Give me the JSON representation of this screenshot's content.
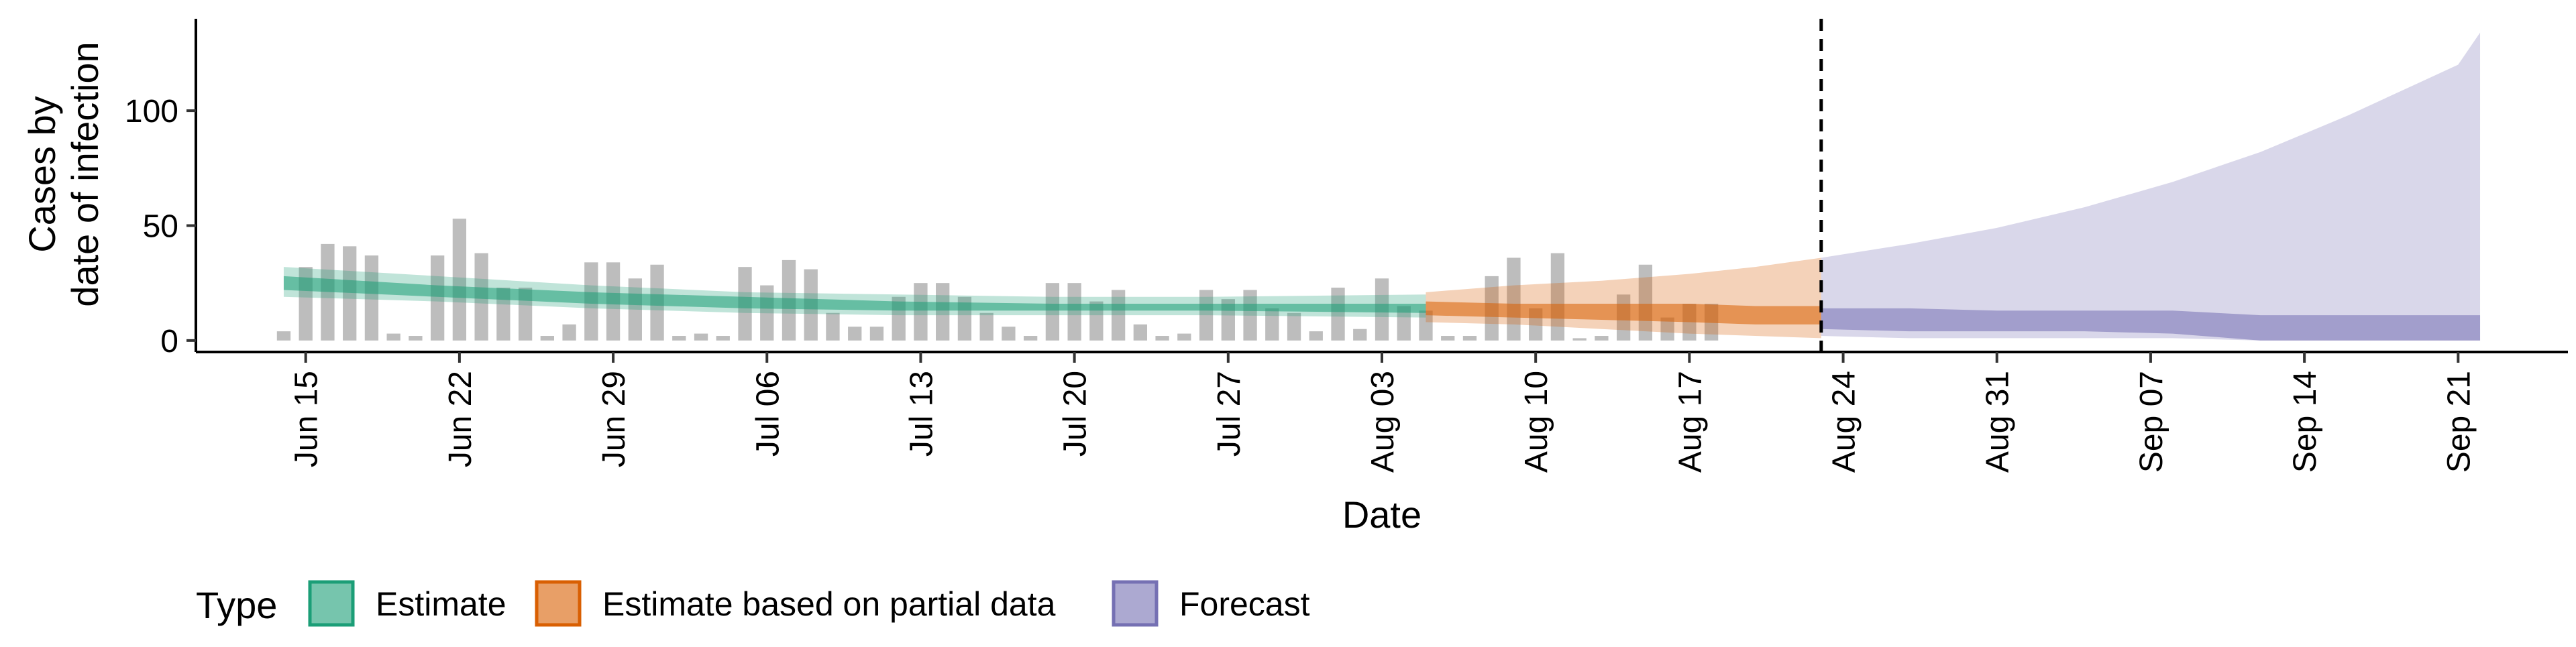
{
  "chart_data": {
    "type": "area",
    "xlabel": "Date",
    "ylabel_lines": [
      "Cases by",
      "date of infection"
    ],
    "xlim": [
      "2020-06-10",
      "2020-09-26"
    ],
    "ylim": [
      -5,
      140
    ],
    "yticks": [
      0,
      50,
      100
    ],
    "xticks": [
      {
        "date": "2020-06-15",
        "label": "Jun 15"
      },
      {
        "date": "2020-06-22",
        "label": "Jun 22"
      },
      {
        "date": "2020-06-29",
        "label": "Jun 29"
      },
      {
        "date": "2020-07-06",
        "label": "Jul 06"
      },
      {
        "date": "2020-07-13",
        "label": "Jul 13"
      },
      {
        "date": "2020-07-20",
        "label": "Jul 20"
      },
      {
        "date": "2020-07-27",
        "label": "Jul 27"
      },
      {
        "date": "2020-08-03",
        "label": "Aug 03"
      },
      {
        "date": "2020-08-10",
        "label": "Aug 10"
      },
      {
        "date": "2020-08-17",
        "label": "Aug 17"
      },
      {
        "date": "2020-08-24",
        "label": "Aug 24"
      },
      {
        "date": "2020-08-31",
        "label": "Aug 31"
      },
      {
        "date": "2020-09-07",
        "label": "Sep 07"
      },
      {
        "date": "2020-09-14",
        "label": "Sep 14"
      },
      {
        "date": "2020-09-21",
        "label": "Sep 21"
      }
    ],
    "grid": false,
    "forecast_start_line": "2020-08-23",
    "legend": {
      "title": "Type",
      "position": "bottom-left",
      "entries": [
        {
          "label": "Estimate",
          "color": "#1b9e77"
        },
        {
          "label": "Estimate based on partial data",
          "color": "#d95f02"
        },
        {
          "label": "Forecast",
          "color": "#7570b3"
        }
      ]
    },
    "bars": {
      "color": "#bdbdbd",
      "start_date": "2020-06-14",
      "values": [
        4,
        32,
        42,
        41,
        37,
        3,
        2,
        37,
        53,
        38,
        23,
        23,
        2,
        7,
        34,
        34,
        27,
        33,
        2,
        3,
        2,
        32,
        24,
        35,
        31,
        12,
        6,
        6,
        19,
        25,
        25,
        19,
        12,
        6,
        2,
        25,
        25,
        17,
        22,
        7,
        2,
        3,
        22,
        18,
        22,
        14,
        12,
        4,
        23,
        5,
        27,
        15,
        13,
        2,
        2,
        28,
        36,
        14,
        38,
        1,
        2,
        20,
        33,
        10,
        16,
        16
      ]
    },
    "series": [
      {
        "name": "Estimate",
        "color": "#1b9e77",
        "x": [
          "2020-06-14",
          "2020-06-21",
          "2020-06-28",
          "2020-07-05",
          "2020-07-12",
          "2020-07-19",
          "2020-07-26",
          "2020-08-05"
        ],
        "outer_lo": [
          19,
          17,
          14,
          12,
          11,
          11,
          11,
          10
        ],
        "outer_hi": [
          32,
          28,
          24,
          21,
          20,
          19,
          19,
          20
        ],
        "inner_lo": [
          22,
          19,
          16,
          14,
          13,
          13,
          13,
          12
        ],
        "inner_hi": [
          28,
          24,
          21,
          19,
          17,
          16,
          16,
          16
        ]
      },
      {
        "name": "Estimate based on partial data",
        "color": "#d95f02",
        "x": [
          "2020-08-05",
          "2020-08-09",
          "2020-08-13",
          "2020-08-17",
          "2020-08-20",
          "2020-08-23"
        ],
        "outer_lo": [
          8,
          7,
          5,
          3,
          2,
          1
        ],
        "outer_hi": [
          21,
          24,
          26,
          29,
          32,
          36
        ],
        "inner_lo": [
          11,
          10,
          9,
          8,
          7,
          7
        ],
        "inner_hi": [
          17,
          16,
          16,
          16,
          15,
          15
        ]
      },
      {
        "name": "Forecast",
        "color": "#7570b3",
        "x": [
          "2020-08-23",
          "2020-08-27",
          "2020-08-31",
          "2020-09-04",
          "2020-09-08",
          "2020-09-12",
          "2020-09-16",
          "2020-09-21",
          "2020-09-22"
        ],
        "outer_lo": [
          2,
          1,
          1,
          1,
          1,
          0,
          0,
          0,
          0
        ],
        "outer_hi": [
          36,
          42,
          49,
          58,
          69,
          82,
          98,
          120,
          134
        ],
        "inner_lo": [
          5,
          4,
          4,
          4,
          3,
          0,
          0,
          0,
          0
        ],
        "inner_hi": [
          14,
          14,
          13,
          13,
          13,
          11,
          11,
          11,
          11
        ]
      }
    ]
  }
}
